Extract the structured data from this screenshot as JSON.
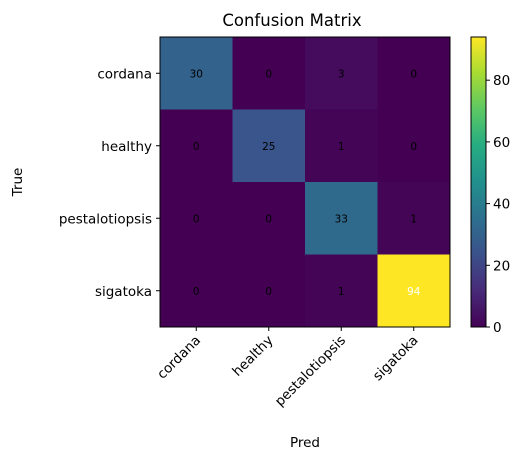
{
  "chart_data": {
    "type": "heatmap",
    "title": "Confusion Matrix",
    "xlabel": "Pred",
    "ylabel": "True",
    "x_categories": [
      "cordana",
      "healthy",
      "pestalotiopsis",
      "sigatoka"
    ],
    "y_categories": [
      "cordana",
      "healthy",
      "pestalotiopsis",
      "sigatoka"
    ],
    "matrix": [
      [
        30,
        0,
        3,
        0
      ],
      [
        0,
        25,
        1,
        0
      ],
      [
        0,
        0,
        33,
        1
      ],
      [
        0,
        0,
        1,
        94
      ]
    ],
    "colormap": "viridis",
    "colorbar": {
      "range": [
        0,
        94
      ],
      "ticks": [
        0,
        20,
        40,
        60,
        80
      ]
    },
    "text_colors": {
      "dark": "#000000",
      "light": "#ffffff"
    }
  }
}
